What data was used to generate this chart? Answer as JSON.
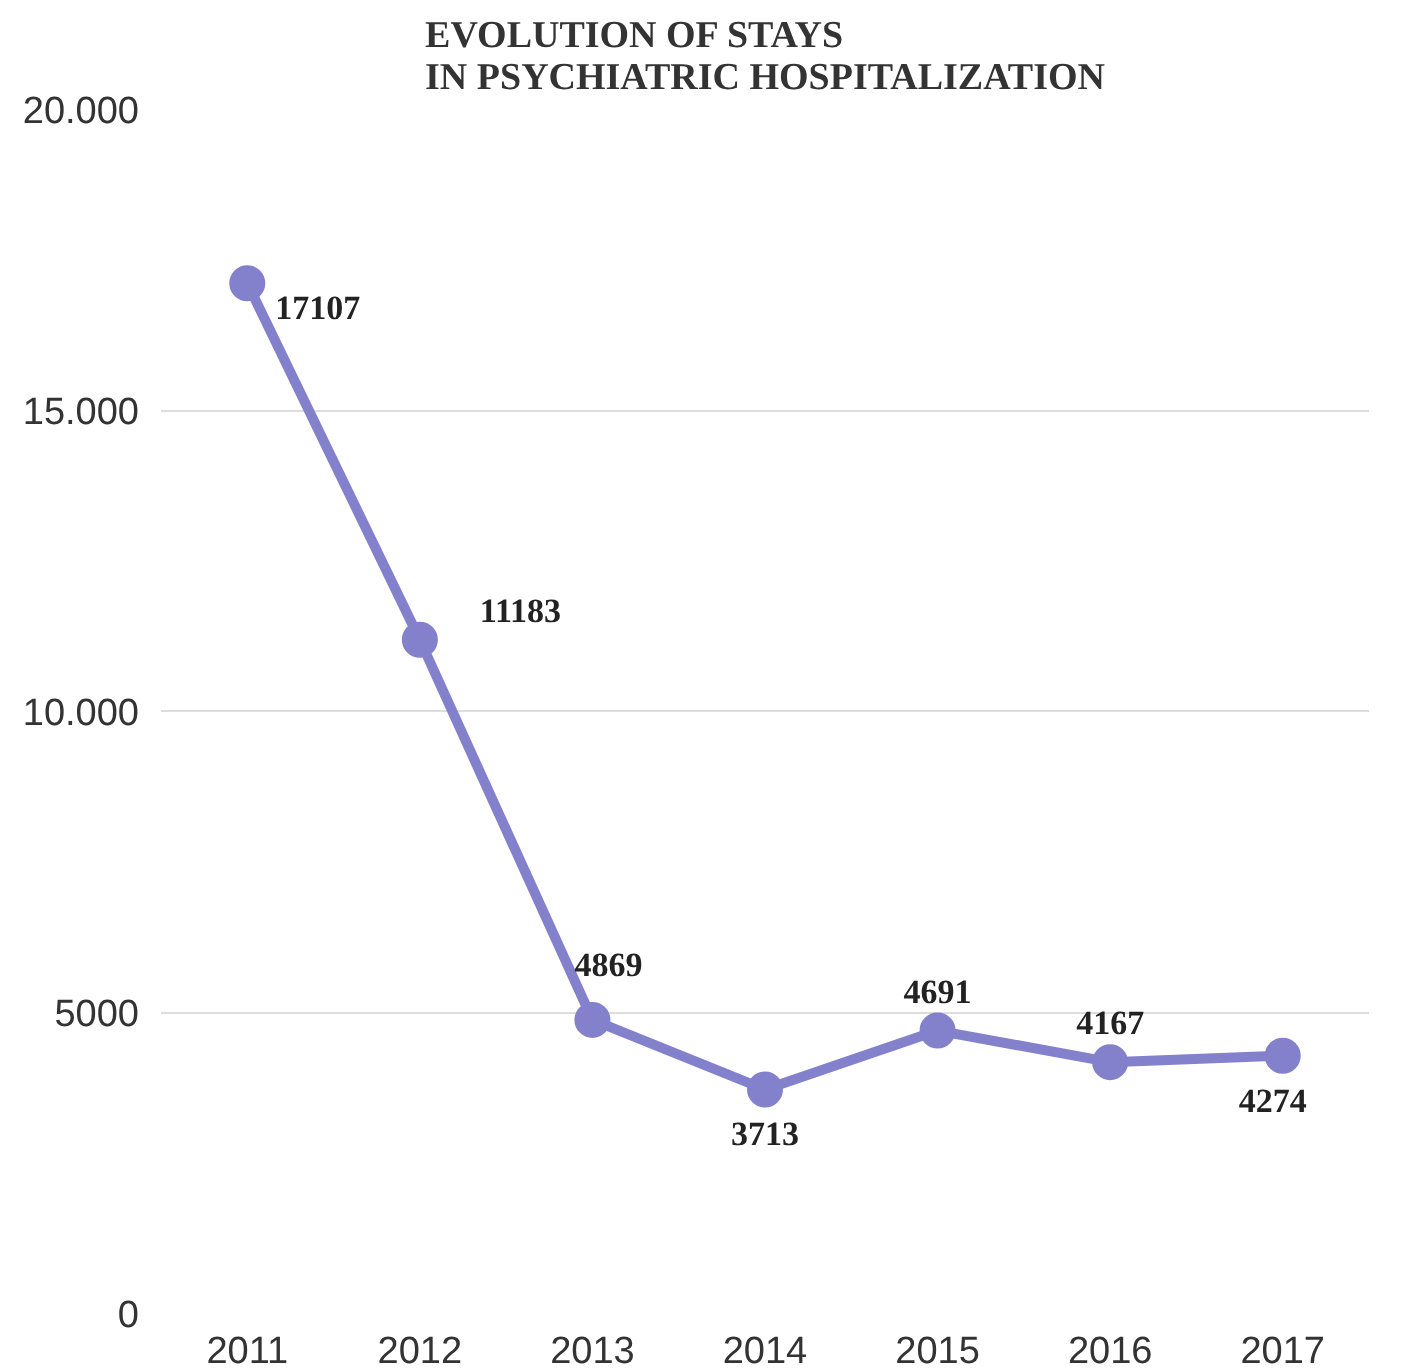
{
  "chart_data": {
    "type": "line",
    "title": "EVOLUTION OF STAYS\nIN PSYCHIATRIC HOSPITALIZATION",
    "categories": [
      "2011",
      "2012",
      "2013",
      "2014",
      "2015",
      "2016",
      "2017"
    ],
    "series": [
      {
        "color": "#8481cc",
        "values": [
          17107,
          11183,
          4869,
          3713,
          4691,
          4167,
          4274
        ]
      }
    ],
    "ylim": [
      0,
      20000
    ],
    "yticks": [
      0,
      5000,
      {
        "value": 10000,
        "label": "10.000"
      },
      {
        "value": 15000,
        "label": "15.000"
      },
      {
        "value": 20000,
        "label": "20.000"
      }
    ],
    "grid": "y",
    "marker": "circle",
    "line_style": "solid",
    "data_labels": true
  }
}
